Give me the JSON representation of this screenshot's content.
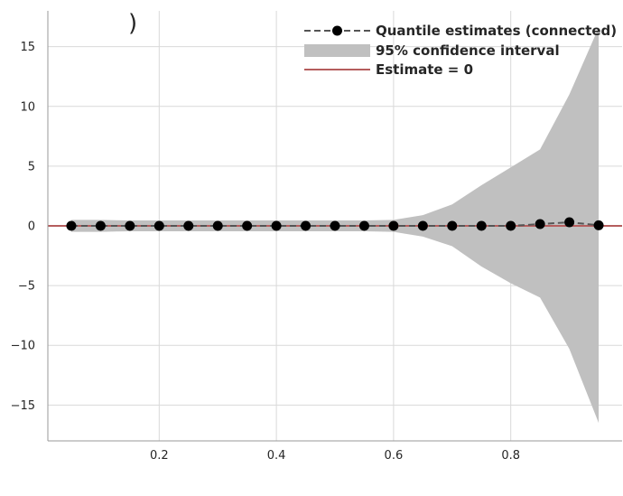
{
  "chart_data": {
    "type": "line",
    "title": "",
    "xlabel": "",
    "ylabel": "",
    "xlim": [
      0.01,
      0.99
    ],
    "ylim": [
      -18,
      18
    ],
    "x_ticks": [
      0.2,
      0.4,
      0.6,
      0.8
    ],
    "y_ticks": [
      -15,
      -10,
      -5,
      0,
      5,
      10,
      15
    ],
    "grid": true,
    "legend_position": "top-right",
    "x": [
      0.05,
      0.1,
      0.15,
      0.2,
      0.25,
      0.3,
      0.35,
      0.4,
      0.45,
      0.5,
      0.55,
      0.6,
      0.65,
      0.7,
      0.75,
      0.8,
      0.85,
      0.9,
      0.95
    ],
    "series": [
      {
        "name": "Quantile estimates (connected)",
        "style": "dashed-line-with-markers",
        "color": "#555555",
        "marker_color": "#000000",
        "values": [
          0.0,
          0.0,
          0.0,
          0.0,
          0.0,
          0.0,
          0.0,
          0.0,
          0.0,
          0.0,
          0.0,
          0.0,
          0.0,
          0.0,
          0.0,
          0.0,
          0.15,
          0.3,
          0.05
        ]
      },
      {
        "name": "95% confidence interval",
        "style": "band",
        "color": "#c0c0c0",
        "lower": [
          -0.5,
          -0.5,
          -0.45,
          -0.45,
          -0.45,
          -0.45,
          -0.45,
          -0.45,
          -0.45,
          -0.45,
          -0.45,
          -0.5,
          -0.9,
          -1.7,
          -3.4,
          -4.8,
          -6.0,
          -10.3,
          -16.5
        ],
        "upper": [
          0.5,
          0.5,
          0.45,
          0.45,
          0.45,
          0.45,
          0.45,
          0.45,
          0.45,
          0.45,
          0.45,
          0.5,
          0.9,
          1.8,
          3.4,
          4.9,
          6.4,
          11.0,
          16.6
        ]
      },
      {
        "name": "Estimate = 0",
        "style": "reference-line",
        "color": "#b55d5d",
        "value": 0
      }
    ]
  },
  "colors": {
    "grid": "#d9d9d9",
    "axis": "#999999",
    "band": "#c0c0c0",
    "dashed_line": "#555555",
    "marker": "#000000",
    "reference_line": "#b55d5d"
  },
  "top_partial_glyph": ")"
}
